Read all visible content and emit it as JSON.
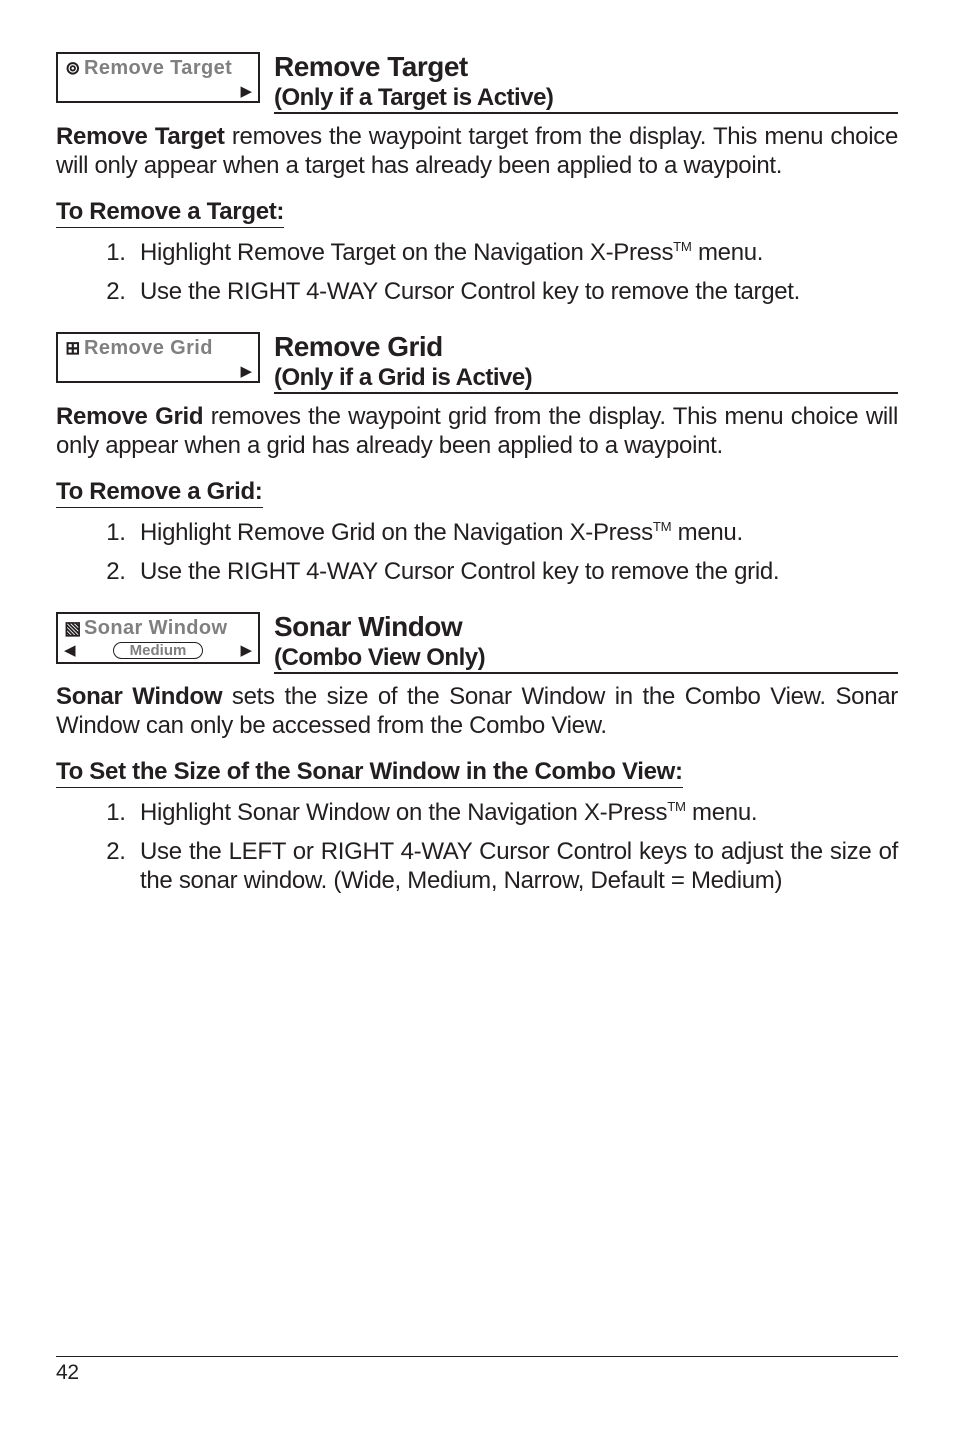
{
  "sections": [
    {
      "menu": {
        "icon": "⊚",
        "label": "Remove Target",
        "type": "arrow"
      },
      "title": "Remove Target",
      "subtitle": "(Only if a Target is Active)",
      "intro_bold": "Remove Target",
      "intro_rest": " removes the waypoint  target from the display. This menu choice will only appear when a target has already been applied to a waypoint.",
      "proc_title": "To Remove a Target:",
      "steps": [
        "Highlight Remove Target on the Navigation X-Press™ menu.",
        "Use the RIGHT 4-WAY Cursor Control key to remove the target."
      ]
    },
    {
      "menu": {
        "icon": "⊞",
        "label": "Remove Grid",
        "type": "arrow"
      },
      "title": "Remove Grid",
      "subtitle": "(Only if a Grid is Active)",
      "intro_bold": "Remove Grid",
      "intro_rest": " removes the waypoint grid from the display. This menu choice will only appear when a grid has already been applied to a waypoint.",
      "proc_title": "To Remove a Grid:",
      "steps": [
        "Highlight Remove Grid on the Navigation X-Press™ menu.",
        "Use the RIGHT 4-WAY Cursor Control key to remove the grid."
      ]
    },
    {
      "menu": {
        "icon": "▧",
        "label": "Sonar Window",
        "type": "pill",
        "pill": "Medium"
      },
      "title": "Sonar Window",
      "subtitle": "(Combo View Only)",
      "intro_bold": "Sonar Window",
      "intro_rest": " sets the size of the Sonar Window in the Combo View. Sonar Window can only be accessed from the Combo View.",
      "proc_title": "To Set the Size of the Sonar Window in the Combo View:",
      "steps": [
        "Highlight Sonar Window on the Navigation X-Press™ menu.",
        "Use the LEFT or RIGHT 4-WAY Cursor Control keys to adjust the size of the sonar window. (Wide, Medium, Narrow, Default = Medium)"
      ]
    }
  ],
  "page_number": "42"
}
